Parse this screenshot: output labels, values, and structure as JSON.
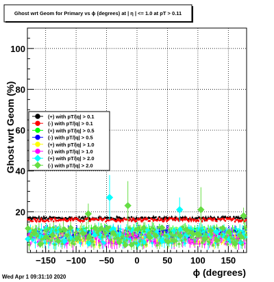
{
  "chart_data": {
    "type": "scatter",
    "title": "Ghost wrt Geom for Primary vs ϕ (degrees) at | η | <= 1.0 at pT > 0.11",
    "xlabel": "ϕ (degrees)",
    "ylabel": "Ghost wrt Geom (%)",
    "xlim": [
      -180,
      180
    ],
    "ylim": [
      0,
      110
    ],
    "x_ticks": [
      -150,
      -100,
      -50,
      0,
      50,
      100,
      150
    ],
    "y_ticks": [
      20,
      40,
      60,
      80,
      100
    ],
    "x_tick_labels": [
      "−150",
      "−100",
      "−50",
      "0",
      "50",
      "100",
      "150"
    ],
    "y_tick_labels": [
      "20",
      "40",
      "60",
      "80",
      "100"
    ],
    "grid": true,
    "legend_position": "left-middle",
    "n_bins": 180,
    "series": [
      {
        "name": "(+) with pT/|q| > 0.1",
        "color": "#000000",
        "marker": "circle",
        "mean": 16.8,
        "spread": 0.7
      },
      {
        "name": "(-) with pT/|q| > 0.1",
        "color": "#ff0000",
        "marker": "circle",
        "mean": 16.0,
        "spread": 0.8
      },
      {
        "name": "(+) with pT/|q| > 0.5",
        "color": "#00ff00",
        "marker": "circle",
        "mean": 10.0,
        "spread": 2.0
      },
      {
        "name": "(-) with pT/|q| > 0.5",
        "color": "#0000ff",
        "marker": "circle",
        "mean": 9.0,
        "spread": 2.0
      },
      {
        "name": "(+) with pT/|q| > 1.0",
        "color": "#ffff00",
        "marker": "circle",
        "mean": 7.5,
        "spread": 3.0
      },
      {
        "name": "(-) with pT/|q| > 1.0",
        "color": "#ff00ff",
        "marker": "circle",
        "mean": 7.0,
        "spread": 3.0
      },
      {
        "name": "(+) with pT/|q| > 2.0",
        "color": "#00ffff",
        "marker": "diamond",
        "mean": 8.0,
        "spread": 4.0
      },
      {
        "name": "(-) with pT/|q| > 2.0",
        "color": "#66dd44",
        "marker": "diamond",
        "mean": 8.0,
        "spread": 4.5
      }
    ],
    "highlight_points": [
      {
        "series": 6,
        "x": -45,
        "y": 27,
        "err": 11
      },
      {
        "series": 7,
        "x": -15,
        "y": 23,
        "err": 12
      },
      {
        "series": 7,
        "x": 105,
        "y": 21,
        "err": 11
      },
      {
        "series": 6,
        "x": 70,
        "y": 21,
        "err": 6
      },
      {
        "series": 7,
        "x": -80,
        "y": 19,
        "err": 5
      },
      {
        "series": 7,
        "x": 175,
        "y": 18,
        "err": 4
      }
    ]
  },
  "timestamp": "Wed Apr  1 09:31:10 2020"
}
